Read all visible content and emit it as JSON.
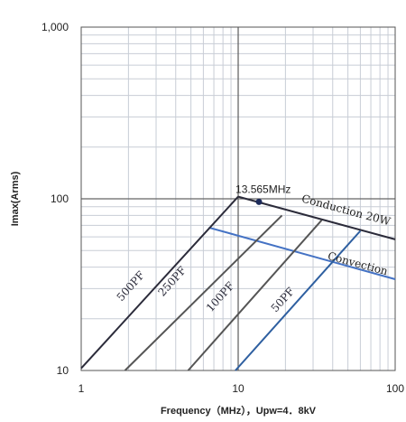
{
  "chart_data": {
    "type": "line",
    "title": "",
    "xlabel": "Frequency（MHz），Upw=4．8kV",
    "ylabel": "Imax(Arms)",
    "xscale": "log",
    "yscale": "log",
    "xlim": [
      1,
      100
    ],
    "ylim": [
      10,
      1000
    ],
    "grid": true,
    "x_ticks": [
      "1",
      "10",
      "100"
    ],
    "y_ticks": [
      "10",
      "100",
      "1,000"
    ],
    "series": [
      {
        "name": "Conduction 20W",
        "color": "#2b2b3a",
        "x": [
          10,
          100
        ],
        "y": [
          103,
          58
        ]
      },
      {
        "name": "Convection",
        "color": "#4472c4",
        "x": [
          6.5,
          100
        ],
        "y": [
          68,
          34
        ]
      },
      {
        "name": "500PF",
        "color": "#2b2b3a",
        "x": [
          1,
          10
        ],
        "y": [
          10.3,
          103
        ]
      },
      {
        "name": "250PF",
        "color": "#555555",
        "x": [
          1.9,
          19
        ],
        "y": [
          10,
          80
        ]
      },
      {
        "name": "100PF",
        "color": "#555555",
        "x": [
          4.8,
          34
        ],
        "y": [
          10,
          75
        ]
      },
      {
        "name": "50PF",
        "color": "#2e5fa0",
        "x": [
          9.6,
          60
        ],
        "y": [
          10,
          65
        ]
      }
    ],
    "annotations": [
      {
        "text": "13.565MHz",
        "x": 13.565,
        "y": 96
      }
    ]
  }
}
